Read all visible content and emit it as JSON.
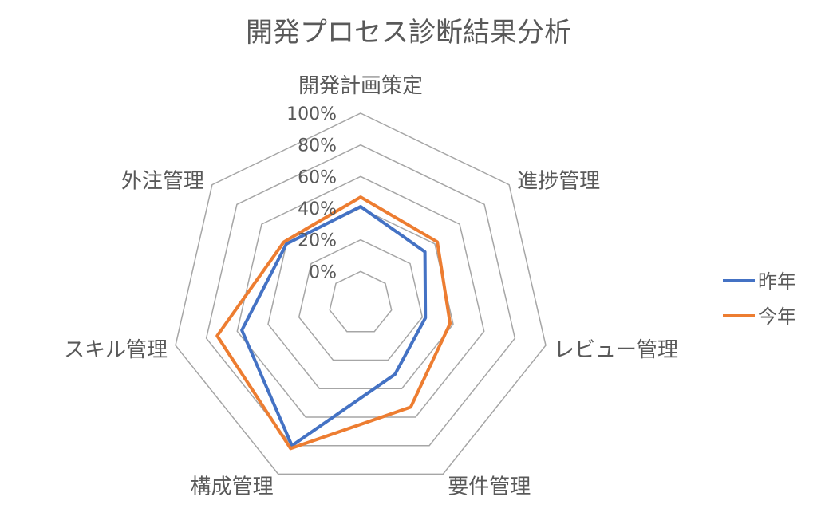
{
  "chart_data": {
    "type": "radar",
    "title": "開発プロセス診断結果分析",
    "categories": [
      "開発計画策定",
      "進捗管理",
      "レビュー管理",
      "要件管理",
      "構成管理",
      "スキル管理",
      "外注管理"
    ],
    "series": [
      {
        "name": "昨年",
        "color": "#4472C4",
        "values": [
          0.41,
          0.32,
          0.22,
          0.3,
          0.8,
          0.57,
          0.4
        ]
      },
      {
        "name": "今年",
        "color": "#ED7D31",
        "values": [
          0.47,
          0.42,
          0.38,
          0.53,
          0.82,
          0.73,
          0.42
        ]
      }
    ],
    "r_axis": {
      "min": 0,
      "max": 1,
      "step": 0.2,
      "tick_labels": [
        "0%",
        "20%",
        "40%",
        "60%",
        "80%",
        "100%"
      ]
    },
    "grid_color": "#A6A6A6",
    "grid": true,
    "legend_position": "right"
  }
}
